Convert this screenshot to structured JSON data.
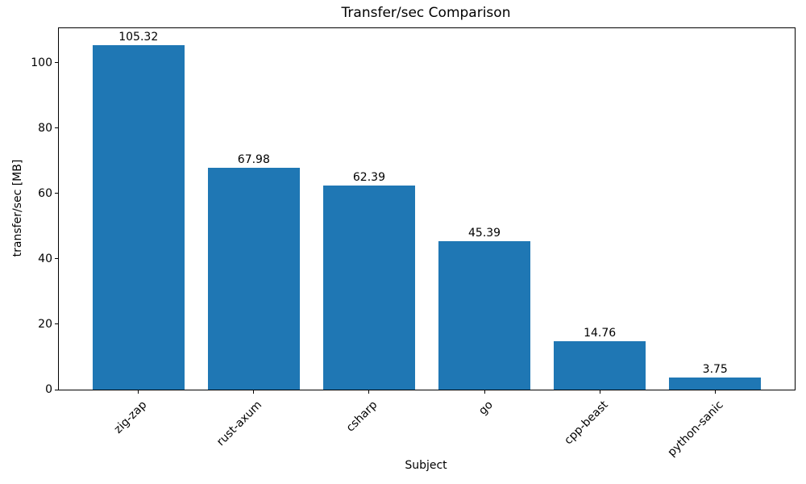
{
  "figure": {
    "background": "#ffffff"
  },
  "chart_data": {
    "type": "bar",
    "title": "Transfer/sec Comparison",
    "xlabel": "Subject",
    "ylabel": "transfer/sec [MB]",
    "categories": [
      "zig-zap",
      "rust-axum",
      "csharp",
      "go",
      "cpp-beast",
      "python-sanic"
    ],
    "values": [
      105.32,
      67.98,
      62.39,
      45.39,
      14.76,
      3.75
    ],
    "bar_value_labels": [
      "105.32",
      "67.98",
      "62.39",
      "45.39",
      "14.76",
      "3.75"
    ],
    "ytick_values": [
      0,
      20,
      40,
      60,
      80,
      100
    ],
    "ytick_labels": [
      "0",
      "20",
      "40",
      "60",
      "80",
      "100"
    ],
    "ylim": [
      0,
      110.6
    ],
    "bar_color": "#1f77b4",
    "text_color": "#000000",
    "spine_color": "#000000",
    "grid": false,
    "legend_position": "none",
    "x_tick_rotation_deg": 45
  }
}
